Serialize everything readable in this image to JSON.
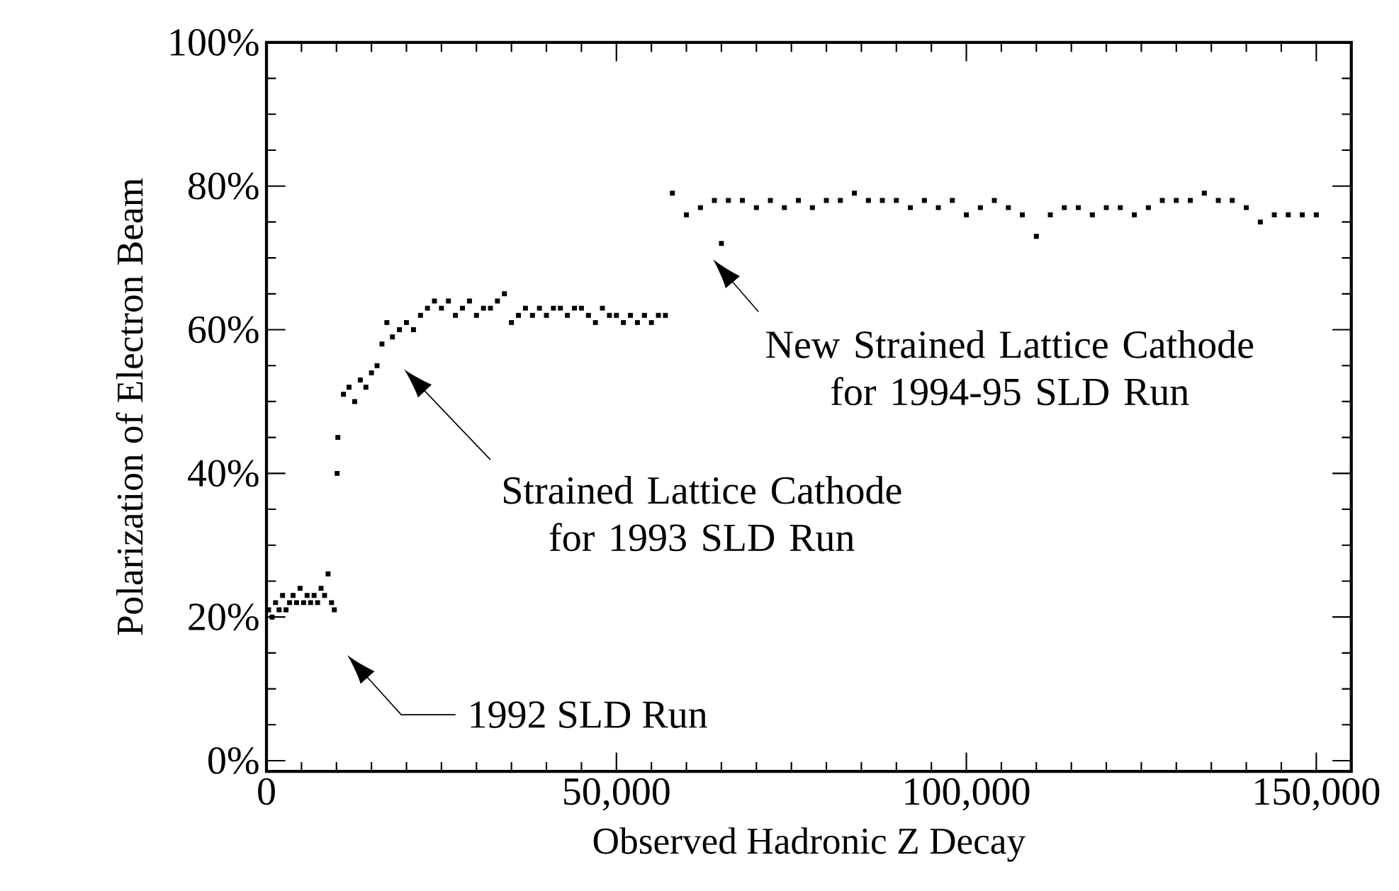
{
  "chart_data": {
    "type": "scatter",
    "xlabel": "Observed Hadronic Z Decay",
    "ylabel": "Polarization of Electron Beam",
    "xlim": [
      0,
      155000
    ],
    "ylim": [
      -1.5,
      100
    ],
    "xticks": [
      {
        "value": 0,
        "label": "0"
      },
      {
        "value": 50000,
        "label": "50,000"
      },
      {
        "value": 100000,
        "label": "100,000"
      },
      {
        "value": 150000,
        "label": "150,000"
      }
    ],
    "yticks": [
      {
        "value": 0,
        "label": "0%"
      },
      {
        "value": 20,
        "label": "20%"
      },
      {
        "value": 40,
        "label": "40%"
      },
      {
        "value": 60,
        "label": "60%"
      },
      {
        "value": 80,
        "label": "80%"
      },
      {
        "value": 100,
        "label": "100%"
      }
    ],
    "grid": false,
    "marker": "square",
    "series": [
      {
        "color": "#000000",
        "x": [
          300,
          800,
          1300,
          1800,
          2300,
          2800,
          3300,
          3800,
          4300,
          4800,
          5300,
          5800,
          6300,
          6800,
          7300,
          7800,
          8300,
          8800,
          9300,
          9700,
          10100,
          10200,
          11000,
          11800,
          12600,
          13400,
          14200,
          15000,
          15800,
          16500,
          17200,
          18000,
          19000,
          20000,
          21000,
          22000,
          23000,
          24000,
          25000,
          26000,
          27000,
          28000,
          29000,
          30000,
          31000,
          32000,
          33000,
          34000,
          35000,
          36000,
          37000,
          38000,
          39000,
          40000,
          41000,
          42000,
          43000,
          44000,
          45000,
          46000,
          47000,
          48000,
          49000,
          50000,
          51000,
          52000,
          53000,
          54000,
          55000,
          56000,
          57000,
          58000,
          60000,
          62000,
          64000,
          65000,
          66000,
          68000,
          70000,
          72000,
          74000,
          76000,
          78000,
          80000,
          82000,
          84000,
          86000,
          88000,
          90000,
          92000,
          94000,
          96000,
          98000,
          100000,
          102000,
          104000,
          106000,
          108000,
          110000,
          112000,
          114000,
          116000,
          118000,
          120000,
          122000,
          124000,
          126000,
          128000,
          130000,
          132000,
          134000,
          136000,
          138000,
          140000,
          142000,
          144000,
          146000,
          148000,
          150000
        ],
        "values": [
          21,
          20,
          22,
          21,
          23,
          21,
          22,
          23,
          22,
          24,
          22,
          23,
          22,
          23,
          22,
          24,
          23,
          26,
          22,
          21,
          40,
          45,
          51,
          52,
          50,
          53,
          52,
          54,
          55,
          58,
          61,
          59,
          60,
          61,
          60,
          62,
          63,
          64,
          63,
          64,
          62,
          63,
          64,
          62,
          63,
          63,
          64,
          65,
          61,
          62,
          63,
          62,
          63,
          62,
          63,
          63,
          62,
          63,
          63,
          62,
          61,
          63,
          62,
          62,
          61,
          62,
          61,
          62,
          61,
          62,
          62,
          79,
          76,
          77,
          78,
          72,
          78,
          78,
          77,
          78,
          77,
          78,
          77,
          78,
          78,
          79,
          78,
          78,
          78,
          77,
          78,
          77,
          78,
          76,
          77,
          78,
          77,
          76,
          73,
          76,
          77,
          77,
          76,
          77,
          77,
          76,
          77,
          78,
          78,
          78,
          79,
          78,
          78,
          77,
          75,
          76,
          76,
          76,
          76
        ]
      }
    ],
    "annotations": [
      "1992 SLD Run",
      "Strained Lattice Cathode for 1993 SLD Run",
      "New Strained Lattice Cathode for 1994-95 SLD Run"
    ]
  }
}
